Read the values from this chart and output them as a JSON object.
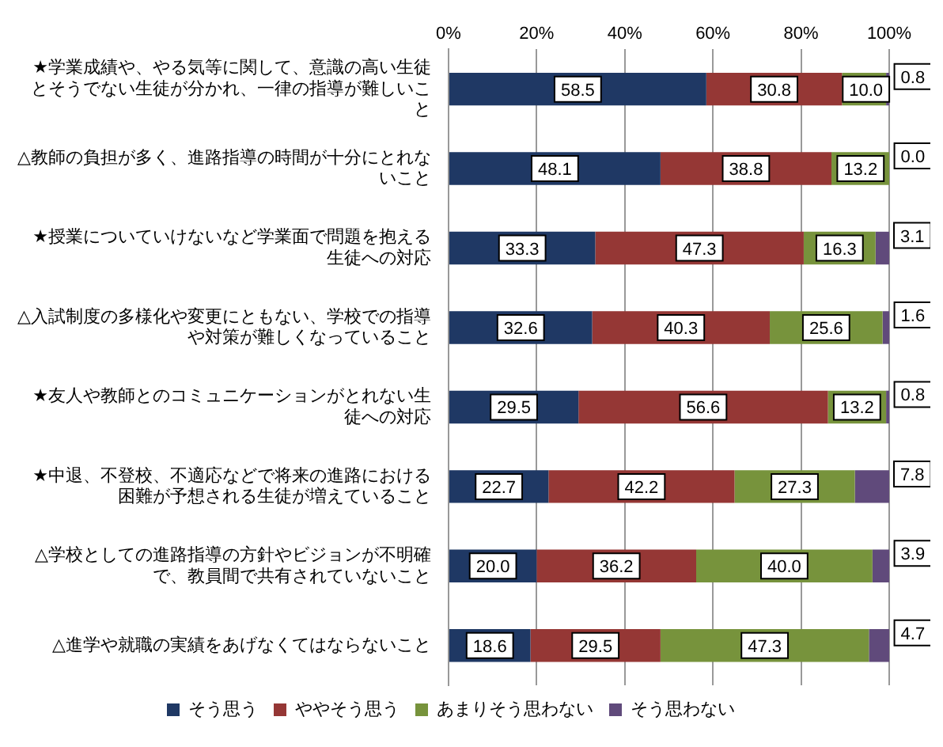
{
  "chart_data": {
    "type": "bar",
    "orientation": "horizontal",
    "stacked": true,
    "categories": [
      "★学業成績や、やる気等に関して、意識の高い生徒とそうでない生徒が分かれ、一律の指導が難しいこと",
      "△教師の負担が多く、進路指導の時間が十分にとれないこと",
      "★授業についていけないなど学業面で問題を抱える生徒への対応",
      "△入試制度の多様化や変更にともない、学校での指導や対策が難しくなっていること",
      "★友人や教師とのコミュニケーションがとれない生徒への対応",
      "★中退、不登校、不適応などで将来の進路における困難が予想される生徒が増えていること",
      "△学校としての進路指導の方針やビジョンが不明確で、教員間で共有されていないこと",
      "△進学や就職の実績をあげなくてはならないこと"
    ],
    "series": [
      {
        "name": "そう思う",
        "color": "#1f3864",
        "values": [
          58.5,
          48.1,
          33.3,
          32.6,
          29.5,
          22.7,
          20,
          18.6
        ],
        "value_labels": [
          "58.5",
          "48.1",
          "33.3",
          "32.6",
          "29.5",
          "22.7",
          "20.0",
          "18.6"
        ]
      },
      {
        "name": "ややそう思う",
        "color": "#953735",
        "values": [
          30.8,
          38.8,
          47.3,
          40.3,
          56.6,
          42.2,
          36.2,
          29.5
        ],
        "value_labels": [
          "30.8",
          "38.8",
          "47.3",
          "40.3",
          "56.6",
          "42.2",
          "36.2",
          "29.5"
        ]
      },
      {
        "name": "あまりそう思わない",
        "color": "#77933c",
        "values": [
          10,
          13.2,
          16.3,
          25.6,
          13.2,
          27.3,
          40,
          47.3
        ],
        "value_labels": [
          "10.0",
          "13.2",
          "16.3",
          "25.6",
          "13.2",
          "27.3",
          "40.0",
          "47.3"
        ]
      },
      {
        "name": "そう思わない",
        "color": "#604a7b",
        "values": [
          0.8,
          0,
          3.1,
          1.6,
          0.8,
          7.8,
          3.9,
          4.7
        ],
        "value_labels": [
          "0.8",
          "0.0",
          "3.1",
          "1.6",
          "0.8",
          "7.8",
          "3.9",
          "4.7"
        ]
      }
    ],
    "xlim": [
      0,
      100
    ],
    "xticks": [
      {
        "value": 0,
        "label": "0%"
      },
      {
        "value": 20,
        "label": "20%"
      },
      {
        "value": 40,
        "label": "40%"
      },
      {
        "value": 60,
        "label": "60%"
      },
      {
        "value": 80,
        "label": "80%"
      },
      {
        "value": 100,
        "label": "100%"
      }
    ],
    "grid": "x",
    "legend": "bottom"
  }
}
